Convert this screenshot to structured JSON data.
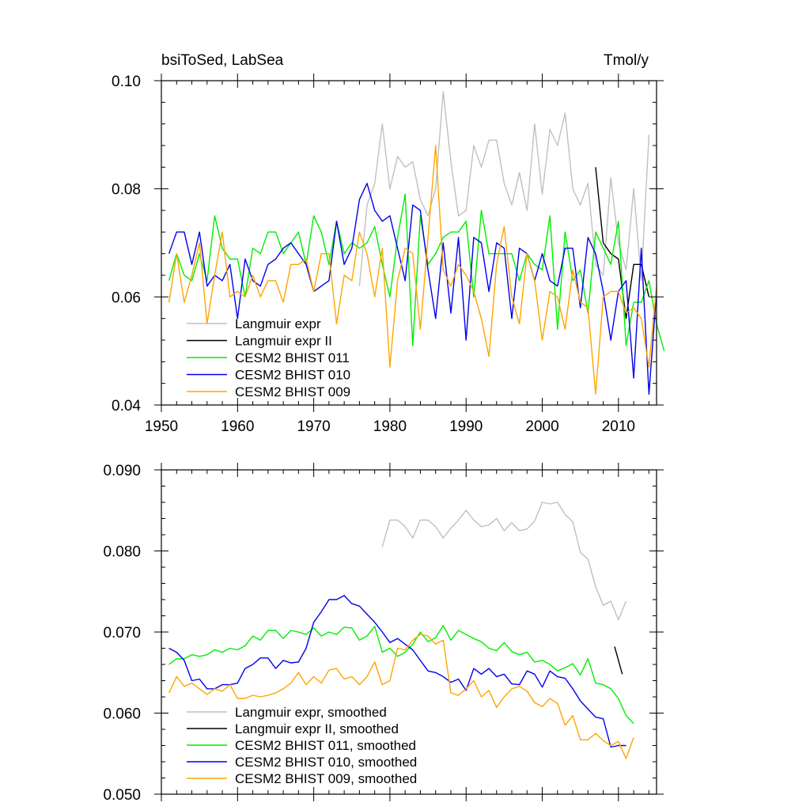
{
  "chart_data": [
    {
      "type": "line",
      "title_left": "bsiToSed, LabSea",
      "title_right": "Tmol/y",
      "xlim": [
        1950,
        2015
      ],
      "ylim": [
        0.04,
        0.1
      ],
      "x_ticks": [
        "1950",
        "1960",
        "1970",
        "1980",
        "1990",
        "2000",
        "2010"
      ],
      "y_ticks": [
        "0.04",
        "0.06",
        "0.08",
        "0.10"
      ],
      "legend_position": "lower-left",
      "series": [
        {
          "name": "Langmuir expr",
          "color": "#c0c0c0",
          "x_start": 1976,
          "values": [
            0.062,
            0.077,
            0.081,
            0.092,
            0.08,
            0.086,
            0.084,
            0.085,
            0.078,
            0.075,
            0.08,
            0.098,
            0.085,
            0.075,
            0.076,
            0.088,
            0.084,
            0.089,
            0.089,
            0.081,
            0.077,
            0.083,
            0.076,
            0.092,
            0.079,
            0.091,
            0.088,
            0.094,
            0.08,
            0.077,
            0.081,
            0.066,
            0.064,
            0.082,
            0.07,
            0.065,
            0.08,
            0.063,
            0.09
          ]
        },
        {
          "name": "Langmuir expr II",
          "color": "#000000",
          "x_start": 2007,
          "values": [
            0.084,
            0.07,
            0.068,
            0.067,
            0.056,
            0.066,
            0.066,
            0.06
          ]
        },
        {
          "name": "CESM2 BHIST 011",
          "color": "#00ee00",
          "x_start": 1951,
          "values": [
            0.063,
            0.068,
            0.064,
            0.063,
            0.068,
            0.063,
            0.075,
            0.069,
            0.067,
            0.067,
            0.06,
            0.069,
            0.068,
            0.072,
            0.072,
            0.068,
            0.07,
            0.072,
            0.066,
            0.075,
            0.072,
            0.066,
            0.074,
            0.068,
            0.07,
            0.069,
            0.07,
            0.073,
            0.066,
            0.06,
            0.071,
            0.079,
            0.051,
            0.075,
            0.066,
            0.068,
            0.071,
            0.072,
            0.072,
            0.074,
            0.06,
            0.076,
            0.068,
            0.068,
            0.068,
            0.068,
            0.063,
            0.068,
            0.066,
            0.065,
            0.075,
            0.054,
            0.072,
            0.063,
            0.065,
            0.057,
            0.072,
            0.069,
            0.066,
            0.074,
            0.051,
            0.059,
            0.059,
            0.063,
            0.055,
            0.05
          ]
        },
        {
          "name": "CESM2 BHIST 010",
          "color": "#0000ee",
          "x_start": 1951,
          "values": [
            0.068,
            0.072,
            0.072,
            0.066,
            0.072,
            0.062,
            0.064,
            0.063,
            0.066,
            0.056,
            0.067,
            0.063,
            0.062,
            0.066,
            0.067,
            0.069,
            0.07,
            0.068,
            0.066,
            0.061,
            0.062,
            0.063,
            0.074,
            0.066,
            0.069,
            0.078,
            0.081,
            0.076,
            0.074,
            0.075,
            0.069,
            0.063,
            0.077,
            0.076,
            0.065,
            0.056,
            0.07,
            0.057,
            0.071,
            0.052,
            0.071,
            0.07,
            0.061,
            0.07,
            0.069,
            0.056,
            0.069,
            0.068,
            0.063,
            0.068,
            0.063,
            0.062,
            0.069,
            0.069,
            0.058,
            0.071,
            0.068,
            0.061,
            0.052,
            0.061,
            0.063,
            0.045,
            0.069,
            0.042,
            0.061
          ]
        },
        {
          "name": "CESM2 BHIST 009",
          "color": "#ffa500",
          "x_start": 1951,
          "values": [
            0.059,
            0.068,
            0.059,
            0.064,
            0.07,
            0.055,
            0.064,
            0.072,
            0.06,
            0.061,
            0.06,
            0.064,
            0.06,
            0.063,
            0.063,
            0.059,
            0.066,
            0.066,
            0.067,
            0.061,
            0.068,
            0.068,
            0.055,
            0.064,
            0.063,
            0.072,
            0.068,
            0.06,
            0.069,
            0.047,
            0.063,
            0.069,
            0.068,
            0.054,
            0.071,
            0.088,
            0.065,
            0.062,
            0.066,
            0.064,
            0.061,
            0.056,
            0.049,
            0.066,
            0.073,
            0.06,
            0.055,
            0.068,
            0.063,
            0.052,
            0.061,
            0.06,
            0.054,
            0.065,
            0.059,
            0.058,
            0.042,
            0.06,
            0.061,
            0.061,
            0.057,
            0.058,
            0.056,
            0.047,
            0.062
          ]
        }
      ]
    },
    {
      "type": "line",
      "xlim": [
        1950,
        2015
      ],
      "ylim": [
        0.05,
        0.09
      ],
      "x_ticks": [],
      "y_ticks": [
        "0.050",
        "0.060",
        "0.070",
        "0.080",
        "0.090"
      ],
      "legend_position": "lower-left",
      "series": [
        {
          "name": "Langmuir expr, smoothed",
          "color": "#c0c0c0",
          "x_start": 1979,
          "values": [
            0.0805,
            0.0838,
            0.0838,
            0.083,
            0.0816,
            0.0838,
            0.0838,
            0.083,
            0.0816,
            0.0828,
            0.0838,
            0.085,
            0.0838,
            0.083,
            0.0832,
            0.084,
            0.0825,
            0.0835,
            0.0825,
            0.0827,
            0.0837,
            0.086,
            0.0858,
            0.086,
            0.0845,
            0.0836,
            0.0798,
            0.079,
            0.0756,
            0.0733,
            0.0738,
            0.0715,
            0.0738
          ]
        },
        {
          "name": "Langmuir expr II, smoothed",
          "color": "#000000",
          "x_start": 2009.5,
          "values": [
            0.0682,
            0.0648
          ]
        },
        {
          "name": "CESM2 BHIST 011, smoothed",
          "color": "#00ee00",
          "x_start": 1951,
          "values": [
            0.066,
            0.0667,
            0.0667,
            0.0672,
            0.067,
            0.0672,
            0.0678,
            0.0675,
            0.068,
            0.0678,
            0.0683,
            0.0695,
            0.069,
            0.0702,
            0.0702,
            0.0692,
            0.0702,
            0.07,
            0.0697,
            0.0705,
            0.0695,
            0.07,
            0.0697,
            0.0706,
            0.0705,
            0.069,
            0.0695,
            0.0707,
            0.0675,
            0.068,
            0.067,
            0.0675,
            0.0685,
            0.07,
            0.0688,
            0.0693,
            0.0708,
            0.069,
            0.0702,
            0.0697,
            0.0692,
            0.0688,
            0.068,
            0.0677,
            0.0687,
            0.0676,
            0.0672,
            0.0675,
            0.0663,
            0.0665,
            0.066,
            0.0652,
            0.0656,
            0.0661,
            0.0647,
            0.0667,
            0.0637,
            0.0635,
            0.063,
            0.0618,
            0.0597,
            0.0587
          ]
        },
        {
          "name": "CESM2 BHIST 010, smoothed",
          "color": "#0000ee",
          "x_start": 1951,
          "values": [
            0.068,
            0.0675,
            0.0665,
            0.064,
            0.0642,
            0.063,
            0.063,
            0.0635,
            0.0635,
            0.0637,
            0.0655,
            0.066,
            0.0668,
            0.0668,
            0.0655,
            0.0665,
            0.0662,
            0.0663,
            0.068,
            0.0712,
            0.0725,
            0.074,
            0.074,
            0.0745,
            0.0735,
            0.0732,
            0.0722,
            0.0712,
            0.07,
            0.0687,
            0.0692,
            0.0685,
            0.0678,
            0.0665,
            0.0652,
            0.065,
            0.0645,
            0.0638,
            0.0642,
            0.0628,
            0.0655,
            0.0648,
            0.0655,
            0.0645,
            0.0648,
            0.0636,
            0.0635,
            0.0652,
            0.0648,
            0.0632,
            0.0652,
            0.0645,
            0.0643,
            0.063,
            0.0615,
            0.0605,
            0.0595,
            0.0593,
            0.0558,
            0.056,
            0.056
          ]
        },
        {
          "name": "CESM2 BHIST 009, smoothed",
          "color": "#ffa500",
          "x_start": 1951,
          "values": [
            0.0625,
            0.0645,
            0.0633,
            0.0637,
            0.063,
            0.0623,
            0.063,
            0.0627,
            0.0635,
            0.0618,
            0.0618,
            0.0622,
            0.062,
            0.0622,
            0.0625,
            0.063,
            0.0637,
            0.065,
            0.0635,
            0.0645,
            0.0637,
            0.0653,
            0.0655,
            0.0642,
            0.0645,
            0.0635,
            0.0645,
            0.0663,
            0.0635,
            0.064,
            0.068,
            0.0678,
            0.069,
            0.0697,
            0.0695,
            0.0685,
            0.069,
            0.0625,
            0.0622,
            0.063,
            0.064,
            0.062,
            0.0628,
            0.0607,
            0.062,
            0.063,
            0.0633,
            0.0627,
            0.0613,
            0.0608,
            0.0618,
            0.0612,
            0.0585,
            0.0597,
            0.0567,
            0.0567,
            0.0575,
            0.0566,
            0.056,
            0.0565,
            0.0544,
            0.057
          ]
        }
      ]
    }
  ]
}
